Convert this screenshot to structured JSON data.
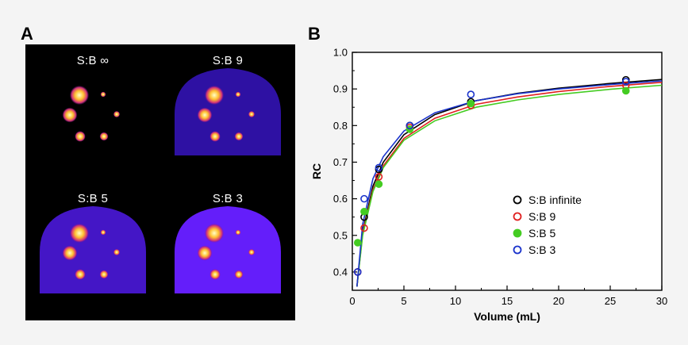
{
  "panels": {
    "a_label": "A",
    "b_label": "B"
  },
  "phantom_images": [
    {
      "label": "S:B ∞",
      "background_level": 0.0
    },
    {
      "label": "S:B 9",
      "background_level": 0.33
    },
    {
      "label": "S:B 5",
      "background_level": 0.6
    },
    {
      "label": "S:B 3",
      "background_level": 1.0
    }
  ],
  "chart_data": {
    "type": "scatter",
    "xlabel": "Volume (mL)",
    "ylabel": "RC",
    "xlim": [
      0,
      30
    ],
    "ylim": [
      0.35,
      1.0
    ],
    "x_ticks": [
      "0",
      "5",
      "10",
      "15",
      "20",
      "25",
      "30"
    ],
    "y_ticks": [
      "0.4",
      "0.5",
      "0.6",
      "0.7",
      "0.8",
      "0.9",
      "1.0"
    ],
    "grid": false,
    "legend_position": "bottom-right",
    "series": [
      {
        "name": "S:B infinite",
        "color": "#000000",
        "marker": "open-circle",
        "x": [
          0.52,
          1.15,
          2.57,
          5.57,
          11.49,
          26.52
        ],
        "y": [
          0.4,
          0.55,
          0.68,
          0.8,
          0.865,
          0.925
        ],
        "fit": [
          [
            0.45,
            0.36
          ],
          [
            1,
            0.51
          ],
          [
            2,
            0.635
          ],
          [
            3,
            0.7
          ],
          [
            5,
            0.775
          ],
          [
            8,
            0.83
          ],
          [
            12,
            0.868
          ],
          [
            16,
            0.888
          ],
          [
            20,
            0.902
          ],
          [
            25,
            0.915
          ],
          [
            30,
            0.926
          ]
        ]
      },
      {
        "name": "S:B 9",
        "color": "#e02020",
        "marker": "open-circle",
        "x": [
          0.52,
          1.15,
          2.57,
          5.57,
          11.49,
          26.52
        ],
        "y": [
          0.4,
          0.52,
          0.66,
          0.795,
          0.855,
          0.91
        ],
        "fit": [
          [
            0.45,
            0.36
          ],
          [
            1,
            0.505
          ],
          [
            2,
            0.625
          ],
          [
            3,
            0.69
          ],
          [
            5,
            0.765
          ],
          [
            8,
            0.82
          ],
          [
            12,
            0.858
          ],
          [
            16,
            0.878
          ],
          [
            20,
            0.893
          ],
          [
            25,
            0.907
          ],
          [
            30,
            0.918
          ]
        ]
      },
      {
        "name": "S:B 5",
        "color": "#44cc22",
        "marker": "filled-circle",
        "x": [
          0.52,
          1.15,
          2.57,
          5.57,
          11.49,
          26.52
        ],
        "y": [
          0.48,
          0.565,
          0.64,
          0.79,
          0.86,
          0.895
        ],
        "fit": [
          [
            0.45,
            0.36
          ],
          [
            1,
            0.5
          ],
          [
            2,
            0.62
          ],
          [
            3,
            0.685
          ],
          [
            5,
            0.76
          ],
          [
            8,
            0.813
          ],
          [
            12,
            0.85
          ],
          [
            16,
            0.87
          ],
          [
            20,
            0.885
          ],
          [
            25,
            0.899
          ],
          [
            30,
            0.91
          ]
        ]
      },
      {
        "name": "S:B 3",
        "color": "#1a33cc",
        "marker": "open-circle",
        "x": [
          0.52,
          1.15,
          2.57,
          5.57,
          11.49,
          26.52
        ],
        "y": [
          0.4,
          0.6,
          0.685,
          0.8,
          0.885,
          0.92
        ],
        "fit": [
          [
            0.45,
            0.36
          ],
          [
            1,
            0.53
          ],
          [
            2,
            0.655
          ],
          [
            3,
            0.715
          ],
          [
            5,
            0.785
          ],
          [
            8,
            0.835
          ],
          [
            12,
            0.868
          ],
          [
            16,
            0.887
          ],
          [
            20,
            0.9
          ],
          [
            25,
            0.912
          ],
          [
            30,
            0.922
          ]
        ]
      }
    ]
  }
}
